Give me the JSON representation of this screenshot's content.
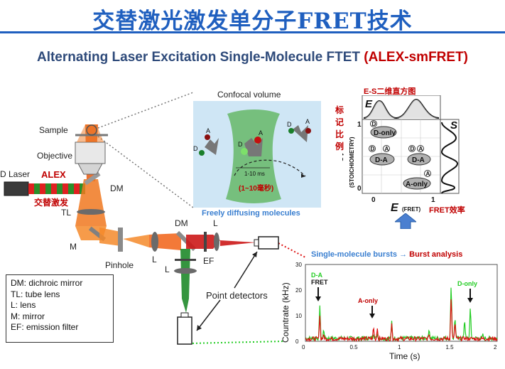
{
  "header": {
    "title": "交替激光激发单分子FRET技术",
    "subtitle_main": "Alternating Laser Excitation Single-Molecule FTET ",
    "subtitle_accent": "(ALEX-smFRET)"
  },
  "setup": {
    "sample": "Sample",
    "objective": "Objective",
    "d_laser": "D Laser",
    "alex": "ALEX",
    "alex_cn": "交替激发",
    "dm": "DM",
    "tl": "TL",
    "m": "M",
    "pinhole": "Pinhole",
    "l": "L",
    "dm2": "DM",
    "l2": "L",
    "ef": "EF",
    "l3": "L",
    "point_detectors": "Point detectors"
  },
  "legend": [
    "DM: dichroic mirror",
    "TL: tube lens",
    "L: lens",
    "M: mirror",
    "EF: emission filter"
  ],
  "confocal": {
    "title": "Confocal volume",
    "time": "1-10 ms",
    "time_cn": "(1~10毫秒)",
    "caption": "Freely diffusing molecules",
    "label_A": "A",
    "label_D": "D"
  },
  "es_histogram": {
    "title": "E-S二维直方图",
    "label_E": "E",
    "label_S": "S",
    "stoich_cn": "标记比例",
    "stoich_axis": "(STOICHIOMETRY)",
    "s_tick_1": "1",
    "s_tick_0": "0",
    "e_tick_0": "0",
    "e_tick_1": "1",
    "x_axis_E": "E",
    "x_axis_fret": "(FRET)",
    "fret_cn": "FRET效率",
    "pop_d_only": "D-only",
    "pop_d_a_1": "D-A",
    "pop_d_a_2": "D-A",
    "pop_a_only": "A-only",
    "badge_d": "D",
    "badge_a": "A"
  },
  "bursts": {
    "heading_main": "Single-molecule bursts ",
    "heading_arrow": "→",
    "heading_accent": " Burst analysis",
    "ylabel": "Countrate (kHz)",
    "xlabel": "Time (s)",
    "anno_d_a": "D-A",
    "anno_fret": "FRET",
    "anno_a_only": "A-only",
    "anno_d_only": "D-only",
    "colors": {
      "green": "#22cc22",
      "red": "#dd1111"
    }
  },
  "chart_data": {
    "type": "line",
    "xlabel": "Time (s)",
    "ylabel": "Countrate (kHz)",
    "xlim": [
      0,
      2
    ],
    "ylim": [
      0,
      30
    ],
    "x_ticks": [
      "0",
      "0.5",
      "1",
      "1.5",
      "2"
    ],
    "y_ticks": [
      "0",
      "10",
      "20",
      "30"
    ],
    "peaks": [
      {
        "t": 0.15,
        "green": 14,
        "red": 10
      },
      {
        "t": 0.19,
        "green": 5,
        "red": 3
      },
      {
        "t": 0.71,
        "green": 3,
        "red": 6
      },
      {
        "t": 0.75,
        "green": 3,
        "red": 5
      },
      {
        "t": 0.9,
        "green": 8,
        "red": 7
      },
      {
        "t": 1.29,
        "green": 5,
        "red": 3
      },
      {
        "t": 1.52,
        "green": 23,
        "red": 18
      },
      {
        "t": 1.56,
        "green": 10,
        "red": 8
      },
      {
        "t": 1.66,
        "green": 9,
        "red": 1
      },
      {
        "t": 1.72,
        "green": 14,
        "red": 1
      },
      {
        "t": 1.85,
        "green": 3,
        "red": 1
      }
    ],
    "series": [
      {
        "name": "green",
        "color": "#22cc22"
      },
      {
        "name": "red",
        "color": "#dd1111"
      }
    ]
  }
}
